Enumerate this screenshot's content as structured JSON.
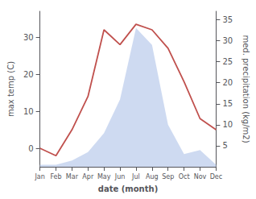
{
  "chart_data": {
    "type": "line",
    "xlabel": "date (month)",
    "ylabel": "max temp (C)",
    "y2label": "med. precipitation (kg/m2)",
    "categories": [
      "Jan",
      "Feb",
      "Mar",
      "Apr",
      "May",
      "Jun",
      "Jul",
      "Aug",
      "Sep",
      "Oct",
      "Nov",
      "Dec"
    ],
    "series": [
      {
        "type": "area",
        "axis": "y2",
        "color": "#c5d4ef",
        "values": [
          0.5,
          0.5,
          1.5,
          3.5,
          8.0,
          16.0,
          33.0,
          29.0,
          10.0,
          3.0,
          4.0,
          0.5
        ]
      },
      {
        "type": "line",
        "color": "#c0504d",
        "values": [
          0.0,
          -2.0,
          5.0,
          14.0,
          32.0,
          28.0,
          33.5,
          32.0,
          27.0,
          18.0,
          8.0,
          5.0
        ]
      }
    ],
    "ylim": [
      -5,
      37
    ],
    "yticks": [
      0,
      10,
      20,
      30
    ],
    "y2lim": [
      0,
      37
    ],
    "y2ticks": [
      5,
      10,
      15,
      20,
      25,
      30,
      35
    ],
    "grid": false
  }
}
